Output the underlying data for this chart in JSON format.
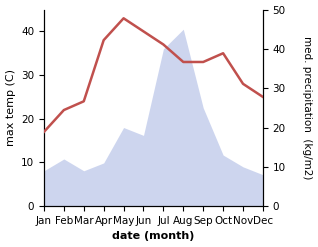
{
  "months": [
    "Jan",
    "Feb",
    "Mar",
    "Apr",
    "May",
    "Jun",
    "Jul",
    "Aug",
    "Sep",
    "Oct",
    "Nov",
    "Dec"
  ],
  "temperature": [
    17,
    22,
    24,
    38,
    43,
    40,
    37,
    33,
    33,
    35,
    28,
    25
  ],
  "precipitation": [
    9,
    12,
    9,
    11,
    20,
    18,
    40,
    45,
    25,
    13,
    10,
    8
  ],
  "temp_color": "#c0504d",
  "precip_color": "#b8c4e8",
  "ylabel_left": "max temp (C)",
  "ylabel_right": "med. precipitation  (kg/m2)",
  "xlabel": "date (month)",
  "ylim_left": [
    0,
    45
  ],
  "ylim_right": [
    0,
    50
  ],
  "yticks_left": [
    0,
    10,
    20,
    30,
    40
  ],
  "yticks_right": [
    0,
    10,
    20,
    30,
    40,
    50
  ],
  "background_color": "#ffffff",
  "label_fontsize": 8,
  "tick_fontsize": 7.5
}
